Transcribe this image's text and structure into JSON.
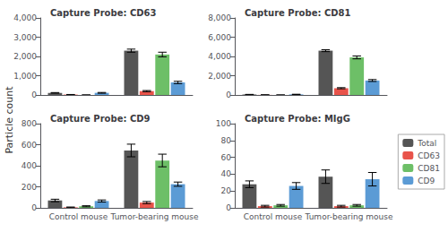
{
  "chart_data": [
    {
      "type": "bar",
      "title": "Capture Probe: CD63",
      "ylabel": "Particle count",
      "categories": [
        null,
        null
      ],
      "series": [
        {
          "name": "Total",
          "color": "#555555",
          "values": [
            110,
            2300
          ],
          "errors": [
            15,
            80
          ]
        },
        {
          "name": "CD63",
          "color": "#e8534a",
          "values": [
            20,
            200
          ],
          "errors": [
            5,
            30
          ]
        },
        {
          "name": "CD81",
          "color": "#6dbf67",
          "values": [
            0,
            2100
          ],
          "errors": [
            0,
            120
          ]
        },
        {
          "name": "CD9",
          "color": "#5b9bd5",
          "values": [
            110,
            650
          ],
          "errors": [
            20,
            60
          ]
        }
      ],
      "ylim": [
        0,
        4000
      ],
      "yticks": [
        0,
        1000,
        2000,
        3000,
        4000
      ],
      "grid": false
    },
    {
      "type": "bar",
      "title": "Capture Probe: CD81",
      "categories": [
        null,
        null
      ],
      "series": [
        {
          "name": "Total",
          "color": "#555555",
          "values": [
            50,
            4600
          ],
          "errors": [
            10,
            100
          ]
        },
        {
          "name": "CD63",
          "color": "#e8534a",
          "values": [
            10,
            700
          ],
          "errors": [
            5,
            60
          ]
        },
        {
          "name": "CD81",
          "color": "#6dbf67",
          "values": [
            0,
            3900
          ],
          "errors": [
            0,
            150
          ]
        },
        {
          "name": "CD9",
          "color": "#5b9bd5",
          "values": [
            60,
            1500
          ],
          "errors": [
            15,
            100
          ]
        }
      ],
      "ylim": [
        0,
        8000
      ],
      "yticks": [
        0,
        2000,
        4000,
        6000,
        8000
      ],
      "grid": false
    },
    {
      "type": "bar",
      "title": "Capture Probe: CD9",
      "categories": [
        "Control mouse",
        "Tumor-bearing mouse"
      ],
      "series": [
        {
          "name": "Total",
          "color": "#555555",
          "values": [
            70,
            545
          ],
          "errors": [
            12,
            60
          ]
        },
        {
          "name": "CD63",
          "color": "#e8534a",
          "values": [
            5,
            50
          ],
          "errors": [
            3,
            10
          ]
        },
        {
          "name": "CD81",
          "color": "#6dbf67",
          "values": [
            15,
            450
          ],
          "errors": [
            5,
            60
          ]
        },
        {
          "name": "CD9",
          "color": "#5b9bd5",
          "values": [
            65,
            225
          ],
          "errors": [
            10,
            20
          ]
        }
      ],
      "ylim": [
        0,
        800
      ],
      "yticks": [
        0,
        200,
        400,
        600,
        800
      ],
      "grid": false
    },
    {
      "type": "bar",
      "title": "Capture Probe: MIgG",
      "categories": [
        "Control mouse",
        "Tumor-bearing mouse"
      ],
      "series": [
        {
          "name": "Total",
          "color": "#555555",
          "values": [
            28,
            37
          ],
          "errors": [
            4,
            8
          ]
        },
        {
          "name": "CD63",
          "color": "#e8534a",
          "values": [
            2,
            2
          ],
          "errors": [
            1,
            1
          ]
        },
        {
          "name": "CD81",
          "color": "#6dbf67",
          "values": [
            3,
            3
          ],
          "errors": [
            1,
            1
          ]
        },
        {
          "name": "CD9",
          "color": "#5b9bd5",
          "values": [
            26,
            34
          ],
          "errors": [
            4,
            8
          ]
        }
      ],
      "ylim": [
        0,
        100
      ],
      "yticks": [
        0,
        20,
        40,
        60,
        80,
        100
      ],
      "grid": false,
      "legend": "right"
    }
  ]
}
